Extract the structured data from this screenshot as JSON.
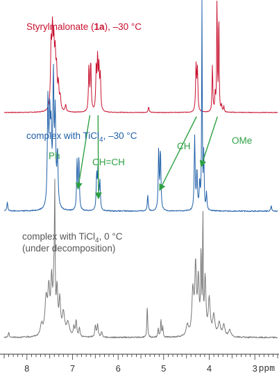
{
  "chart_data": {
    "type": "line",
    "xaxis": {
      "reversed": true,
      "range": [
        8.5,
        2.5
      ],
      "ticks": [
        8,
        7,
        6,
        5,
        4,
        3
      ],
      "minor_step": 0.1,
      "unit": "ppm"
    },
    "colors": {
      "red": "#c8102e",
      "blue": "#1f5fa8",
      "gray": "#777777",
      "annotation": "#2ea043",
      "axis": "#333333"
    },
    "series": [
      {
        "name": "Styrylmalonate (1a), −30 °C",
        "color": "#c8102e",
        "peaks": [
          {
            "ppm": 7.47,
            "h": 0.55,
            "w": 0.015
          },
          {
            "ppm": 7.44,
            "h": 0.62,
            "w": 0.015
          },
          {
            "ppm": 7.41,
            "h": 0.5,
            "w": 0.015
          },
          {
            "ppm": 7.38,
            "h": 0.42,
            "w": 0.015
          },
          {
            "ppm": 7.35,
            "h": 0.32,
            "w": 0.015
          },
          {
            "ppm": 7.31,
            "h": 0.22,
            "w": 0.015
          },
          {
            "ppm": 7.27,
            "h": 0.12,
            "w": 0.015
          },
          {
            "ppm": 7.15,
            "h": 0.06,
            "w": 0.015
          },
          {
            "ppm": 6.64,
            "h": 0.4,
            "w": 0.012
          },
          {
            "ppm": 6.6,
            "h": 0.44,
            "w": 0.012
          },
          {
            "ppm": 6.48,
            "h": 0.38,
            "w": 0.012
          },
          {
            "ppm": 6.45,
            "h": 0.44,
            "w": 0.012
          },
          {
            "ppm": 6.42,
            "h": 0.36,
            "w": 0.012
          },
          {
            "ppm": 6.39,
            "h": 0.3,
            "w": 0.012
          },
          {
            "ppm": 5.33,
            "h": 0.05,
            "w": 0.012
          },
          {
            "ppm": 4.29,
            "h": 0.4,
            "w": 0.012
          },
          {
            "ppm": 4.26,
            "h": 0.38,
            "w": 0.012
          },
          {
            "ppm": 3.93,
            "h": 0.42,
            "w": 0.01
          },
          {
            "ppm": 3.87,
            "h": 0.15,
            "w": 0.01
          },
          {
            "ppm": 3.83,
            "h": 1.05,
            "w": 0.008
          },
          {
            "ppm": 3.79,
            "h": 0.9,
            "w": 0.008
          },
          {
            "ppm": 3.73,
            "h": 0.06,
            "w": 0.01
          },
          {
            "ppm": 3.68,
            "h": 0.05,
            "w": 0.01
          }
        ]
      },
      {
        "name": "complex with TiCl4, −30 °C",
        "color": "#1f5fa8",
        "peaks": [
          {
            "ppm": 8.43,
            "h": 0.05,
            "w": 0.012
          },
          {
            "ppm": 7.54,
            "h": 0.6,
            "w": 0.015
          },
          {
            "ppm": 7.5,
            "h": 0.48,
            "w": 0.015
          },
          {
            "ppm": 7.47,
            "h": 0.38,
            "w": 0.015
          },
          {
            "ppm": 7.42,
            "h": 0.72,
            "w": 0.015
          },
          {
            "ppm": 7.38,
            "h": 0.5,
            "w": 0.015
          },
          {
            "ppm": 7.33,
            "h": 0.3,
            "w": 0.015
          },
          {
            "ppm": 6.9,
            "h": 0.28,
            "w": 0.012
          },
          {
            "ppm": 6.86,
            "h": 0.3,
            "w": 0.012
          },
          {
            "ppm": 6.47,
            "h": 0.2,
            "w": 0.012
          },
          {
            "ppm": 6.44,
            "h": 0.24,
            "w": 0.012
          },
          {
            "ppm": 6.4,
            "h": 0.16,
            "w": 0.012
          },
          {
            "ppm": 5.35,
            "h": 0.09,
            "w": 0.012
          },
          {
            "ppm": 5.11,
            "h": 0.34,
            "w": 0.012
          },
          {
            "ppm": 5.07,
            "h": 0.34,
            "w": 0.012
          },
          {
            "ppm": 4.32,
            "h": 0.42,
            "w": 0.012
          },
          {
            "ppm": 4.27,
            "h": 0.22,
            "w": 0.012
          },
          {
            "ppm": 4.21,
            "h": 0.15,
            "w": 0.012
          },
          {
            "ppm": 4.16,
            "h": 1.2,
            "w": 0.008
          },
          {
            "ppm": 4.12,
            "h": 0.32,
            "w": 0.01
          },
          {
            "ppm": 4.06,
            "h": 0.1,
            "w": 0.01
          },
          {
            "ppm": 2.64,
            "h": 0.03,
            "w": 0.012
          }
        ]
      },
      {
        "name": "complex with TiCl4, 0 °C",
        "color": "#777777",
        "peaks": [
          {
            "ppm": 8.4,
            "h": 0.04,
            "w": 0.015
          },
          {
            "ppm": 7.68,
            "h": 0.1,
            "w": 0.03
          },
          {
            "ppm": 7.58,
            "h": 0.32,
            "w": 0.03
          },
          {
            "ppm": 7.52,
            "h": 0.38,
            "w": 0.025
          },
          {
            "ppm": 7.46,
            "h": 0.45,
            "w": 0.02
          },
          {
            "ppm": 7.41,
            "h": 0.42,
            "w": 0.02
          },
          {
            "ppm": 7.39,
            "h": 1.15,
            "w": 0.008
          },
          {
            "ppm": 7.34,
            "h": 0.38,
            "w": 0.02
          },
          {
            "ppm": 7.28,
            "h": 0.3,
            "w": 0.02
          },
          {
            "ppm": 7.2,
            "h": 0.2,
            "w": 0.03
          },
          {
            "ppm": 7.1,
            "h": 0.12,
            "w": 0.04
          },
          {
            "ppm": 6.97,
            "h": 0.08,
            "w": 0.015
          },
          {
            "ppm": 6.92,
            "h": 0.14,
            "w": 0.015
          },
          {
            "ppm": 6.85,
            "h": 0.08,
            "w": 0.015
          },
          {
            "ppm": 6.5,
            "h": 0.1,
            "w": 0.015
          },
          {
            "ppm": 6.45,
            "h": 0.12,
            "w": 0.015
          },
          {
            "ppm": 6.36,
            "h": 0.05,
            "w": 0.015
          },
          {
            "ppm": 5.36,
            "h": 0.28,
            "w": 0.01
          },
          {
            "ppm": 5.12,
            "h": 0.08,
            "w": 0.01
          },
          {
            "ppm": 5.06,
            "h": 0.16,
            "w": 0.01
          },
          {
            "ppm": 5.02,
            "h": 0.1,
            "w": 0.01
          },
          {
            "ppm": 4.48,
            "h": 0.1,
            "w": 0.03
          },
          {
            "ppm": 4.36,
            "h": 0.4,
            "w": 0.025
          },
          {
            "ppm": 4.3,
            "h": 0.6,
            "w": 0.02
          },
          {
            "ppm": 4.24,
            "h": 0.48,
            "w": 0.02
          },
          {
            "ppm": 4.18,
            "h": 0.7,
            "w": 0.012
          },
          {
            "ppm": 4.14,
            "h": 1.2,
            "w": 0.006
          },
          {
            "ppm": 4.09,
            "h": 0.5,
            "w": 0.02
          },
          {
            "ppm": 4.0,
            "h": 0.32,
            "w": 0.025
          },
          {
            "ppm": 3.9,
            "h": 0.18,
            "w": 0.03
          },
          {
            "ppm": 3.78,
            "h": 0.12,
            "w": 0.03
          },
          {
            "ppm": 3.68,
            "h": 0.1,
            "w": 0.03
          },
          {
            "ppm": 3.55,
            "h": 0.06,
            "w": 0.03
          }
        ]
      }
    ],
    "annotations": {
      "ph": "Ph",
      "chch": "CH=CH",
      "ch": "CH",
      "ome": "OMe"
    }
  },
  "labels": {
    "red_prefix": "Styrylmalonate (",
    "red_bold": "1a",
    "red_suffix": "), –30 °C",
    "blue_prefix": "complex with TiCl",
    "blue_sub": "4",
    "blue_suffix": ", –30 °C",
    "gray_prefix": "complex with TiCl",
    "gray_sub": "4",
    "gray_suffix": ", 0 °C",
    "gray_line2": "(under decomposition)"
  }
}
